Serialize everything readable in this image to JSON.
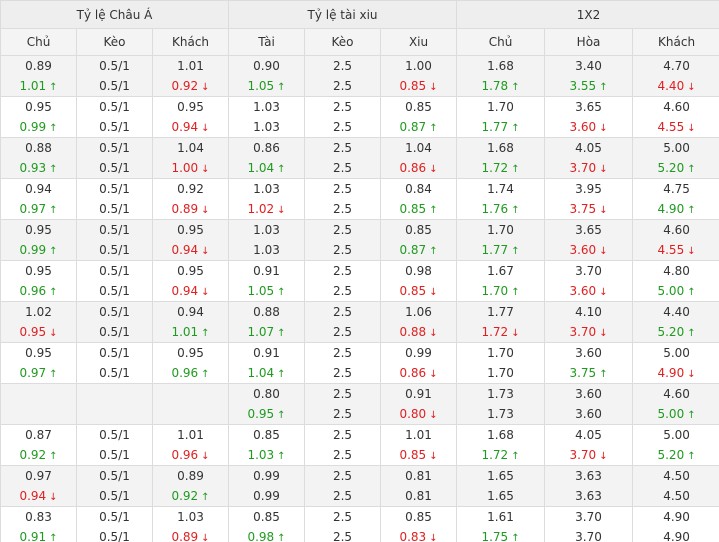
{
  "groups": [
    {
      "title": "Tỷ lệ Châu Á"
    },
    {
      "title": "Tỷ lệ tài xiu"
    },
    {
      "title": "1X2"
    }
  ],
  "columns": [
    "Chủ",
    "Kèo",
    "Khách",
    "Tài",
    "Kèo",
    "Xiu",
    "Chủ",
    "Hòa",
    "Khách"
  ],
  "arrows": {
    "up": "↑",
    "down": "↓"
  },
  "colors": {
    "up": "#1e9b1e",
    "down": "#e02020",
    "header_bg": "#eeeeee",
    "alt_row": "#f3f3f3"
  },
  "rows": [
    [
      [
        {
          "v": "0.89"
        },
        {
          "v": "1.01",
          "d": "up"
        }
      ],
      [
        {
          "v": "0.5/1"
        },
        {
          "v": "0.5/1"
        }
      ],
      [
        {
          "v": "1.01"
        },
        {
          "v": "0.92",
          "d": "down"
        }
      ],
      [
        {
          "v": "0.90"
        },
        {
          "v": "1.05",
          "d": "up"
        }
      ],
      [
        {
          "v": "2.5"
        },
        {
          "v": "2.5"
        }
      ],
      [
        {
          "v": "1.00"
        },
        {
          "v": "0.85",
          "d": "down"
        }
      ],
      [
        {
          "v": "1.68"
        },
        {
          "v": "1.78",
          "d": "up"
        }
      ],
      [
        {
          "v": "3.40"
        },
        {
          "v": "3.55",
          "d": "up"
        }
      ],
      [
        {
          "v": "4.70"
        },
        {
          "v": "4.40",
          "d": "down"
        }
      ]
    ],
    [
      [
        {
          "v": "0.95"
        },
        {
          "v": "0.99",
          "d": "up"
        }
      ],
      [
        {
          "v": "0.5/1"
        },
        {
          "v": "0.5/1"
        }
      ],
      [
        {
          "v": "0.95"
        },
        {
          "v": "0.94",
          "d": "down"
        }
      ],
      [
        {
          "v": "1.03"
        },
        {
          "v": "1.03"
        }
      ],
      [
        {
          "v": "2.5"
        },
        {
          "v": "2.5"
        }
      ],
      [
        {
          "v": "0.85"
        },
        {
          "v": "0.87",
          "d": "up"
        }
      ],
      [
        {
          "v": "1.70"
        },
        {
          "v": "1.77",
          "d": "up"
        }
      ],
      [
        {
          "v": "3.65"
        },
        {
          "v": "3.60",
          "d": "down"
        }
      ],
      [
        {
          "v": "4.60"
        },
        {
          "v": "4.55",
          "d": "down"
        }
      ]
    ],
    [
      [
        {
          "v": "0.88"
        },
        {
          "v": "0.93",
          "d": "up"
        }
      ],
      [
        {
          "v": "0.5/1"
        },
        {
          "v": "0.5/1"
        }
      ],
      [
        {
          "v": "1.04"
        },
        {
          "v": "1.00",
          "d": "down"
        }
      ],
      [
        {
          "v": "0.86"
        },
        {
          "v": "1.04",
          "d": "up"
        }
      ],
      [
        {
          "v": "2.5"
        },
        {
          "v": "2.5"
        }
      ],
      [
        {
          "v": "1.04"
        },
        {
          "v": "0.86",
          "d": "down"
        }
      ],
      [
        {
          "v": "1.68"
        },
        {
          "v": "1.72",
          "d": "up"
        }
      ],
      [
        {
          "v": "4.05"
        },
        {
          "v": "3.70",
          "d": "down"
        }
      ],
      [
        {
          "v": "5.00"
        },
        {
          "v": "5.20",
          "d": "up"
        }
      ]
    ],
    [
      [
        {
          "v": "0.94"
        },
        {
          "v": "0.97",
          "d": "up"
        }
      ],
      [
        {
          "v": "0.5/1"
        },
        {
          "v": "0.5/1"
        }
      ],
      [
        {
          "v": "0.92"
        },
        {
          "v": "0.89",
          "d": "down"
        }
      ],
      [
        {
          "v": "1.03"
        },
        {
          "v": "1.02",
          "d": "down"
        }
      ],
      [
        {
          "v": "2.5"
        },
        {
          "v": "2.5"
        }
      ],
      [
        {
          "v": "0.84"
        },
        {
          "v": "0.85",
          "d": "up"
        }
      ],
      [
        {
          "v": "1.74"
        },
        {
          "v": "1.76",
          "d": "up"
        }
      ],
      [
        {
          "v": "3.95"
        },
        {
          "v": "3.75",
          "d": "down"
        }
      ],
      [
        {
          "v": "4.75"
        },
        {
          "v": "4.90",
          "d": "up"
        }
      ]
    ],
    [
      [
        {
          "v": "0.95"
        },
        {
          "v": "0.99",
          "d": "up"
        }
      ],
      [
        {
          "v": "0.5/1"
        },
        {
          "v": "0.5/1"
        }
      ],
      [
        {
          "v": "0.95"
        },
        {
          "v": "0.94",
          "d": "down"
        }
      ],
      [
        {
          "v": "1.03"
        },
        {
          "v": "1.03"
        }
      ],
      [
        {
          "v": "2.5"
        },
        {
          "v": "2.5"
        }
      ],
      [
        {
          "v": "0.85"
        },
        {
          "v": "0.87",
          "d": "up"
        }
      ],
      [
        {
          "v": "1.70"
        },
        {
          "v": "1.77",
          "d": "up"
        }
      ],
      [
        {
          "v": "3.65"
        },
        {
          "v": "3.60",
          "d": "down"
        }
      ],
      [
        {
          "v": "4.60"
        },
        {
          "v": "4.55",
          "d": "down"
        }
      ]
    ],
    [
      [
        {
          "v": "0.95"
        },
        {
          "v": "0.96",
          "d": "up"
        }
      ],
      [
        {
          "v": "0.5/1"
        },
        {
          "v": "0.5/1"
        }
      ],
      [
        {
          "v": "0.95"
        },
        {
          "v": "0.94",
          "d": "down"
        }
      ],
      [
        {
          "v": "0.91"
        },
        {
          "v": "1.05",
          "d": "up"
        }
      ],
      [
        {
          "v": "2.5"
        },
        {
          "v": "2.5"
        }
      ],
      [
        {
          "v": "0.98"
        },
        {
          "v": "0.85",
          "d": "down"
        }
      ],
      [
        {
          "v": "1.67"
        },
        {
          "v": "1.70",
          "d": "up"
        }
      ],
      [
        {
          "v": "3.70"
        },
        {
          "v": "3.60",
          "d": "down"
        }
      ],
      [
        {
          "v": "4.80"
        },
        {
          "v": "5.00",
          "d": "up"
        }
      ]
    ],
    [
      [
        {
          "v": "1.02"
        },
        {
          "v": "0.95",
          "d": "down"
        }
      ],
      [
        {
          "v": "0.5/1"
        },
        {
          "v": "0.5/1"
        }
      ],
      [
        {
          "v": "0.94"
        },
        {
          "v": "1.01",
          "d": "up"
        }
      ],
      [
        {
          "v": "0.88"
        },
        {
          "v": "1.07",
          "d": "up"
        }
      ],
      [
        {
          "v": "2.5"
        },
        {
          "v": "2.5"
        }
      ],
      [
        {
          "v": "1.06"
        },
        {
          "v": "0.88",
          "d": "down"
        }
      ],
      [
        {
          "v": "1.77"
        },
        {
          "v": "1.72",
          "d": "down"
        }
      ],
      [
        {
          "v": "4.10"
        },
        {
          "v": "3.70",
          "d": "down"
        }
      ],
      [
        {
          "v": "4.40"
        },
        {
          "v": "5.20",
          "d": "up"
        }
      ]
    ],
    [
      [
        {
          "v": "0.95"
        },
        {
          "v": "0.97",
          "d": "up"
        }
      ],
      [
        {
          "v": "0.5/1"
        },
        {
          "v": "0.5/1"
        }
      ],
      [
        {
          "v": "0.95"
        },
        {
          "v": "0.96",
          "d": "up"
        }
      ],
      [
        {
          "v": "0.91"
        },
        {
          "v": "1.04",
          "d": "up"
        }
      ],
      [
        {
          "v": "2.5"
        },
        {
          "v": "2.5"
        }
      ],
      [
        {
          "v": "0.99"
        },
        {
          "v": "0.86",
          "d": "down"
        }
      ],
      [
        {
          "v": "1.70"
        },
        {
          "v": "1.70"
        }
      ],
      [
        {
          "v": "3.60"
        },
        {
          "v": "3.75",
          "d": "up"
        }
      ],
      [
        {
          "v": "5.00"
        },
        {
          "v": "4.90",
          "d": "down"
        }
      ]
    ],
    [
      [],
      [],
      [],
      [
        {
          "v": "0.80"
        },
        {
          "v": "0.95",
          "d": "up"
        }
      ],
      [
        {
          "v": "2.5"
        },
        {
          "v": "2.5"
        }
      ],
      [
        {
          "v": "0.91"
        },
        {
          "v": "0.80",
          "d": "down"
        }
      ],
      [
        {
          "v": "1.73"
        },
        {
          "v": "1.73"
        }
      ],
      [
        {
          "v": "3.60"
        },
        {
          "v": "3.60"
        }
      ],
      [
        {
          "v": "4.60"
        },
        {
          "v": "5.00",
          "d": "up"
        }
      ]
    ],
    [
      [
        {
          "v": "0.87"
        },
        {
          "v": "0.92",
          "d": "up"
        }
      ],
      [
        {
          "v": "0.5/1"
        },
        {
          "v": "0.5/1"
        }
      ],
      [
        {
          "v": "1.01"
        },
        {
          "v": "0.96",
          "d": "down"
        }
      ],
      [
        {
          "v": "0.85"
        },
        {
          "v": "1.03",
          "d": "up"
        }
      ],
      [
        {
          "v": "2.5"
        },
        {
          "v": "2.5"
        }
      ],
      [
        {
          "v": "1.01"
        },
        {
          "v": "0.85",
          "d": "down"
        }
      ],
      [
        {
          "v": "1.68"
        },
        {
          "v": "1.72",
          "d": "up"
        }
      ],
      [
        {
          "v": "4.05"
        },
        {
          "v": "3.70",
          "d": "down"
        }
      ],
      [
        {
          "v": "5.00"
        },
        {
          "v": "5.20",
          "d": "up"
        }
      ]
    ],
    [
      [
        {
          "v": "0.97"
        },
        {
          "v": "0.94",
          "d": "down"
        }
      ],
      [
        {
          "v": "0.5/1"
        },
        {
          "v": "0.5/1"
        }
      ],
      [
        {
          "v": "0.89"
        },
        {
          "v": "0.92",
          "d": "up"
        }
      ],
      [
        {
          "v": "0.99"
        },
        {
          "v": "0.99"
        }
      ],
      [
        {
          "v": "2.5"
        },
        {
          "v": "2.5"
        }
      ],
      [
        {
          "v": "0.81"
        },
        {
          "v": "0.81"
        }
      ],
      [
        {
          "v": "1.65"
        },
        {
          "v": "1.65"
        }
      ],
      [
        {
          "v": "3.63"
        },
        {
          "v": "3.63"
        }
      ],
      [
        {
          "v": "4.50"
        },
        {
          "v": "4.50"
        }
      ]
    ],
    [
      [
        {
          "v": "0.83"
        },
        {
          "v": "0.91",
          "d": "up"
        }
      ],
      [
        {
          "v": "0.5/1"
        },
        {
          "v": "0.5/1"
        }
      ],
      [
        {
          "v": "1.03"
        },
        {
          "v": "0.89",
          "d": "down"
        }
      ],
      [
        {
          "v": "0.85"
        },
        {
          "v": "0.98",
          "d": "up"
        }
      ],
      [
        {
          "v": "2.5"
        },
        {
          "v": "2.5"
        }
      ],
      [
        {
          "v": "0.85"
        },
        {
          "v": "0.83",
          "d": "down"
        }
      ],
      [
        {
          "v": "1.61"
        },
        {
          "v": "1.75",
          "d": "up"
        }
      ],
      [
        {
          "v": "3.70"
        },
        {
          "v": "3.70"
        }
      ],
      [
        {
          "v": "4.90"
        },
        {
          "v": "4.90"
        }
      ]
    ]
  ]
}
